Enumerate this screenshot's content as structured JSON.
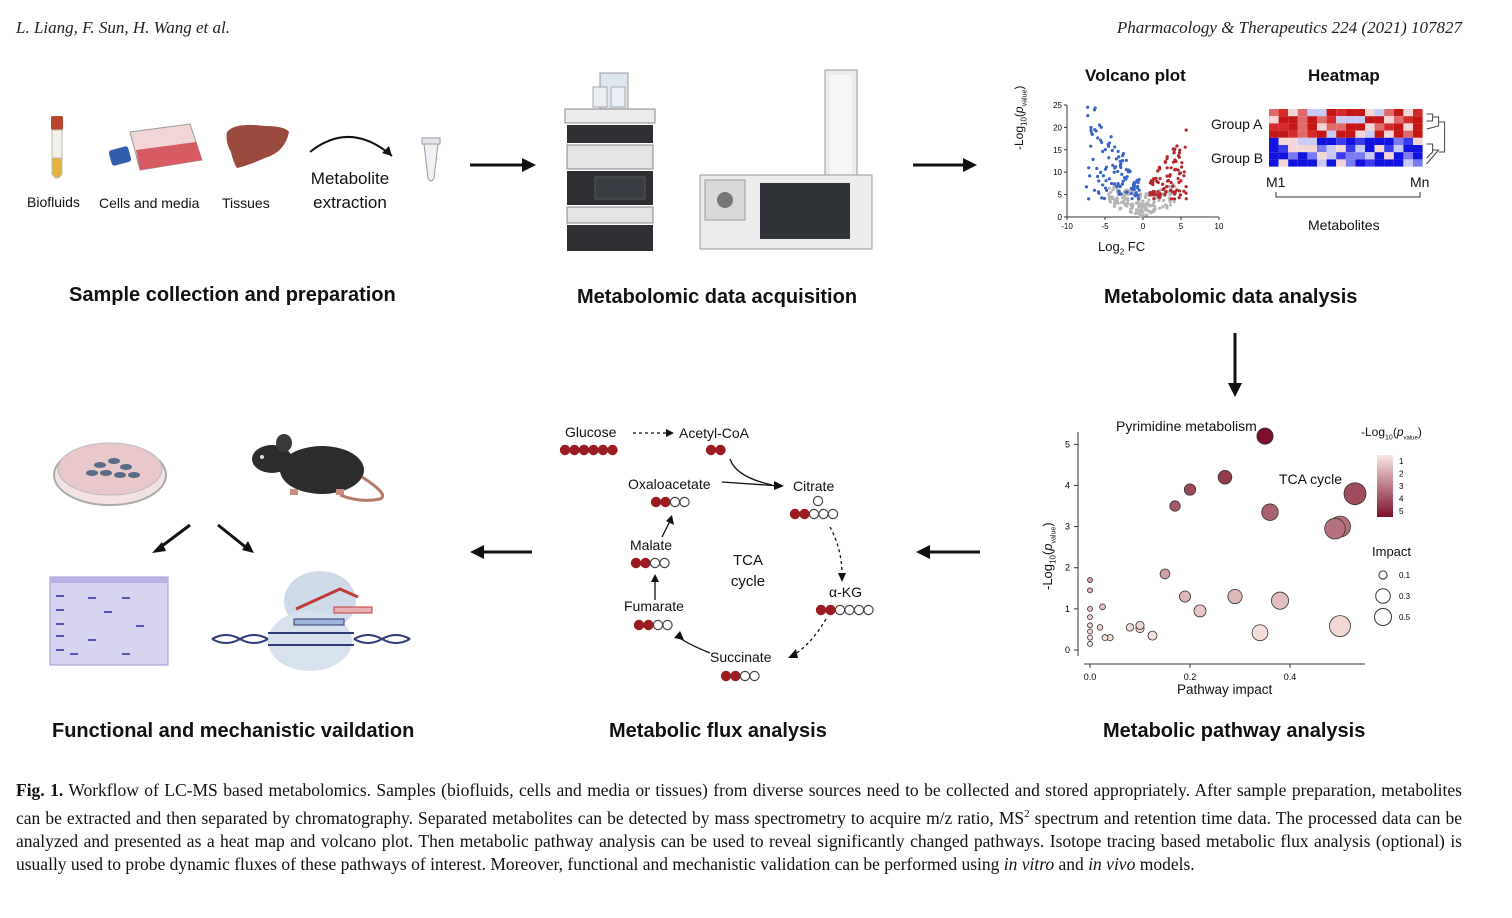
{
  "header": {
    "authors": "L. Liang, F. Sun, H. Wang et al.",
    "journal": "Pharmacology & Therapeutics 224 (2021) 107827"
  },
  "panels": {
    "sample": {
      "title": "Sample collection and preparation",
      "labels": [
        "Biofluids",
        "Cells and media",
        "Tissues"
      ],
      "extraction_line1": "Metabolite",
      "extraction_line2": "extraction"
    },
    "acquisition": {
      "title": "Metabolomic data acquisition"
    },
    "analysis": {
      "title": "Metabolomic data analysis",
      "volcano_title": "Volcano plot",
      "heatmap_title": "Heatmap",
      "volcano_ylabel": "-Log10(pvalue)",
      "volcano_xlabel": "Log2 FC",
      "group_a": "Group A",
      "group_b": "Group B",
      "m1": "M1",
      "mn": "Mn",
      "metabolites": "Metabolites"
    },
    "pathway": {
      "title": "Metabolic pathway analysis",
      "annot_pyrimidine": "Pyrimidine metabolism",
      "annot_tca": "TCA cycle",
      "xlabel": "Pathway impact",
      "ylabel": "-Log10(pvalue)",
      "colorbar_title": "-Log10(pvalue)",
      "impact_title": "Impact"
    },
    "flux": {
      "title": "Metabolic flux analysis",
      "glucose": "Glucose",
      "acetyl": "Acetyl-CoA",
      "oxaloacetate": "Oxaloacetate",
      "citrate": "Citrate",
      "akg": "α-KG",
      "succinate": "Succinate",
      "fumarate": "Fumarate",
      "malate": "Malate",
      "tca_line1": "TCA",
      "tca_line2": "cycle"
    },
    "validation": {
      "title": "Functional and mechanistic vaildation"
    }
  },
  "caption": {
    "label": "Fig. 1.",
    "part1": " Workflow of LC-MS based metabolomics. Samples (biofluids, cells and media or tissues) from diverse sources need to be collected and stored appropriately. After sample preparation, metabolites can be extracted and then separated by chromatography. Separated metabolites can be detected by mass spectrometry to acquire m/z ratio, MS",
    "sup": "2",
    "part2": " spectrum and retention time data. The processed data can be analyzed and presented as a heat map and volcano plot. Then metabolic pathway analysis can be used to reveal significantly changed pathways. Isotope tracing based metabolic flux analysis (optional) is usually used to probe dynamic fluxes of these pathways of interest. Moreover, functional and mechanistic validation can be performed using ",
    "in_vitro": "in vitro",
    "and": " and ",
    "in_vivo": "in vivo",
    "end": " models."
  },
  "chart_data": [
    {
      "type": "scatter",
      "title": "Volcano plot",
      "xlabel": "Log2 FC",
      "ylabel": "-Log10(pvalue)",
      "xlim": [
        -10,
        10
      ],
      "ylim": [
        0,
        25
      ],
      "xticks": [
        -10,
        -5,
        0,
        5,
        10
      ],
      "yticks": [
        0,
        5,
        10,
        15,
        20,
        25
      ],
      "series": [
        {
          "color": "#3a63c7"
        },
        {
          "color": "#b3282d"
        },
        {
          "color": "#b5b5b5"
        }
      ]
    },
    {
      "type": "scatter",
      "xlabel": "Pathway impact",
      "ylabel": "-Log10(pvalue)",
      "xlim": [
        0,
        0.55
      ],
      "ylim": [
        0,
        5.3
      ],
      "xticks": [
        "0.0",
        "0.2",
        "0.4"
      ],
      "yticks": [
        "0",
        "1",
        "2",
        "3",
        "4",
        "5"
      ],
      "colorbar_ticks": [
        "1",
        "2",
        "3",
        "4",
        "5"
      ],
      "impact_legend": [
        "0.1",
        "0.3",
        "0.5"
      ],
      "points": [
        {
          "x": 0.35,
          "y": 5.2
        },
        {
          "x": 0.27,
          "y": 4.2
        },
        {
          "x": 0.2,
          "y": 3.9
        },
        {
          "x": 0.17,
          "y": 3.5
        },
        {
          "x": 0.36,
          "y": 3.35
        },
        {
          "x": 0.53,
          "y": 3.8
        },
        {
          "x": 0.5,
          "y": 3.0
        },
        {
          "x": 0.49,
          "y": 2.95
        },
        {
          "x": 0.15,
          "y": 1.85
        },
        {
          "x": 0.19,
          "y": 1.3
        },
        {
          "x": 0.22,
          "y": 0.95
        },
        {
          "x": 0.29,
          "y": 1.3
        },
        {
          "x": 0.38,
          "y": 1.2
        },
        {
          "x": 0.5,
          "y": 0.58
        },
        {
          "x": 0.34,
          "y": 0.42
        },
        {
          "x": 0.025,
          "y": 1.05
        },
        {
          "x": 0.0,
          "y": 1.7
        },
        {
          "x": 0.0,
          "y": 1.45
        },
        {
          "x": 0.0,
          "y": 1.0
        },
        {
          "x": 0.0,
          "y": 0.8
        },
        {
          "x": 0.0,
          "y": 0.6
        },
        {
          "x": 0.0,
          "y": 0.45
        },
        {
          "x": 0.0,
          "y": 0.3
        },
        {
          "x": 0.0,
          "y": 0.15
        },
        {
          "x": 0.02,
          "y": 0.55
        },
        {
          "x": 0.04,
          "y": 0.3
        },
        {
          "x": 0.08,
          "y": 0.55
        },
        {
          "x": 0.1,
          "y": 0.52
        },
        {
          "x": 0.125,
          "y": 0.35
        },
        {
          "x": 0.03,
          "y": 0.3
        },
        {
          "x": 0.1,
          "y": 0.6
        }
      ]
    }
  ]
}
